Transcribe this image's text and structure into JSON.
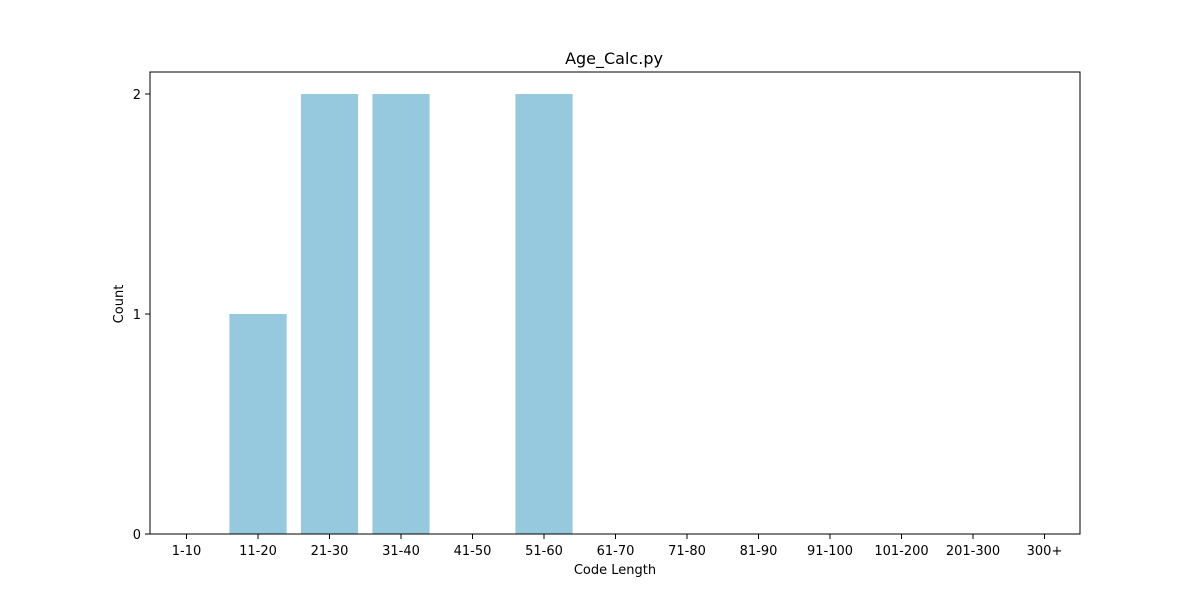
{
  "chart_data": {
    "type": "bar",
    "title": "Age_Calc.py",
    "xlabel": "Code Length",
    "ylabel": "Count",
    "categories": [
      "1-10",
      "11-20",
      "21-30",
      "31-40",
      "41-50",
      "51-60",
      "61-70",
      "71-80",
      "81-90",
      "91-100",
      "101-200",
      "201-300",
      "300+"
    ],
    "values": [
      0,
      1,
      2,
      2,
      0,
      2,
      0,
      0,
      0,
      0,
      0,
      0,
      0
    ],
    "ylim": [
      0,
      2.1
    ],
    "yticks": [
      0,
      1,
      2
    ],
    "bar_color": "#96c9de",
    "grid": false,
    "legend": "none"
  }
}
